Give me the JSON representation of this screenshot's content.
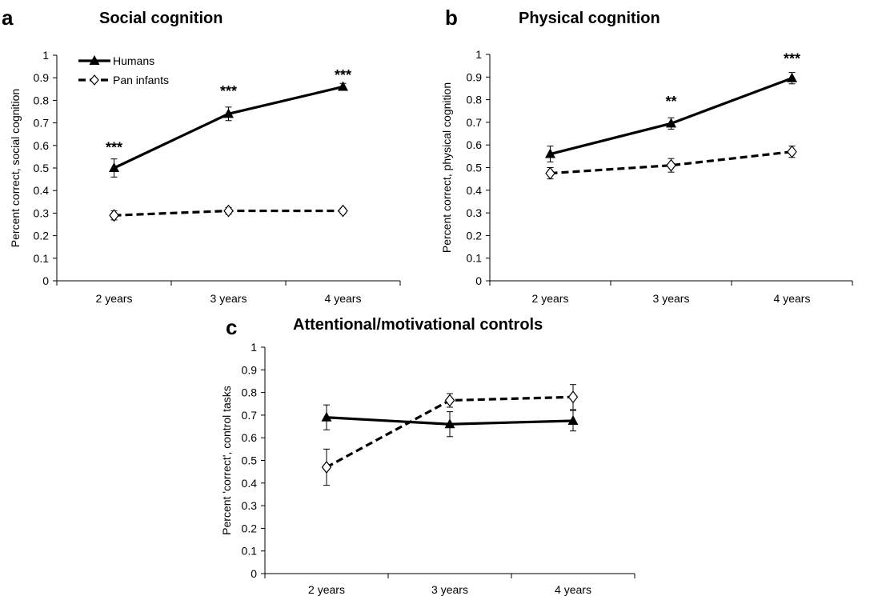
{
  "chart_data": [
    {
      "type": "line",
      "letter": "a",
      "title": "Social cognition",
      "ylabel": "Percent correct, social cognition",
      "categories": [
        "2 years",
        "3 years",
        "4 years"
      ],
      "ylim": [
        0,
        1
      ],
      "yticks": [
        "0",
        "0.1",
        "0.2",
        "0.3",
        "0.4",
        "0.5",
        "0.6",
        "0.7",
        "0.8",
        "0.9",
        "1"
      ],
      "legend": "top-left",
      "series": [
        {
          "name": "Humans",
          "values": [
            0.5,
            0.74,
            0.86
          ],
          "errors": [
            0.04,
            0.03,
            0.015
          ],
          "marker": "triangle",
          "dash": false
        },
        {
          "name": "Pan infants",
          "values": [
            0.29,
            0.31,
            0.31
          ],
          "errors": [
            0.02,
            0.015,
            0.012
          ],
          "marker": "diamond",
          "dash": true
        }
      ],
      "significance": [
        "***",
        "***",
        "***"
      ],
      "significance_y": [
        0.57,
        0.82,
        0.89
      ]
    },
    {
      "type": "line",
      "letter": "b",
      "title": "Physical cognition",
      "ylabel": "Percent correct, physical cognition",
      "categories": [
        "2 years",
        "3 years",
        "4 years"
      ],
      "ylim": [
        0,
        1
      ],
      "yticks": [
        "0",
        "0.1",
        "0.2",
        "0.3",
        "0.4",
        "0.5",
        "0.6",
        "0.7",
        "0.8",
        "0.9",
        "1"
      ],
      "series": [
        {
          "name": "Humans",
          "values": [
            0.56,
            0.695,
            0.895
          ],
          "errors": [
            0.035,
            0.025,
            0.025
          ],
          "marker": "triangle",
          "dash": false
        },
        {
          "name": "Pan infants",
          "values": [
            0.475,
            0.51,
            0.57
          ],
          "errors": [
            0.025,
            0.03,
            0.025
          ],
          "marker": "diamond",
          "dash": true
        }
      ],
      "significance": [
        "",
        "**",
        "***"
      ],
      "significance_y": [
        0,
        0.77,
        0.96
      ]
    },
    {
      "type": "line",
      "letter": "c",
      "title": "Attentional/motivational controls",
      "ylabel": "Percent 'correct', control tasks",
      "categories": [
        "2 years",
        "3 years",
        "4 years"
      ],
      "ylim": [
        0,
        1
      ],
      "yticks": [
        "0",
        "0.1",
        "0.2",
        "0.3",
        "0.4",
        "0.5",
        "0.6",
        "0.7",
        "0.8",
        "0.9",
        "1"
      ],
      "series": [
        {
          "name": "Humans",
          "values": [
            0.69,
            0.66,
            0.675
          ],
          "errors": [
            0.055,
            0.055,
            0.045
          ],
          "marker": "triangle",
          "dash": false
        },
        {
          "name": "Pan infants",
          "values": [
            0.47,
            0.765,
            0.78
          ],
          "errors": [
            0.08,
            0.03,
            0.055
          ],
          "marker": "diamond",
          "dash": true
        }
      ],
      "significance": [
        "",
        "",
        ""
      ],
      "significance_y": [
        0,
        0,
        0
      ]
    }
  ]
}
